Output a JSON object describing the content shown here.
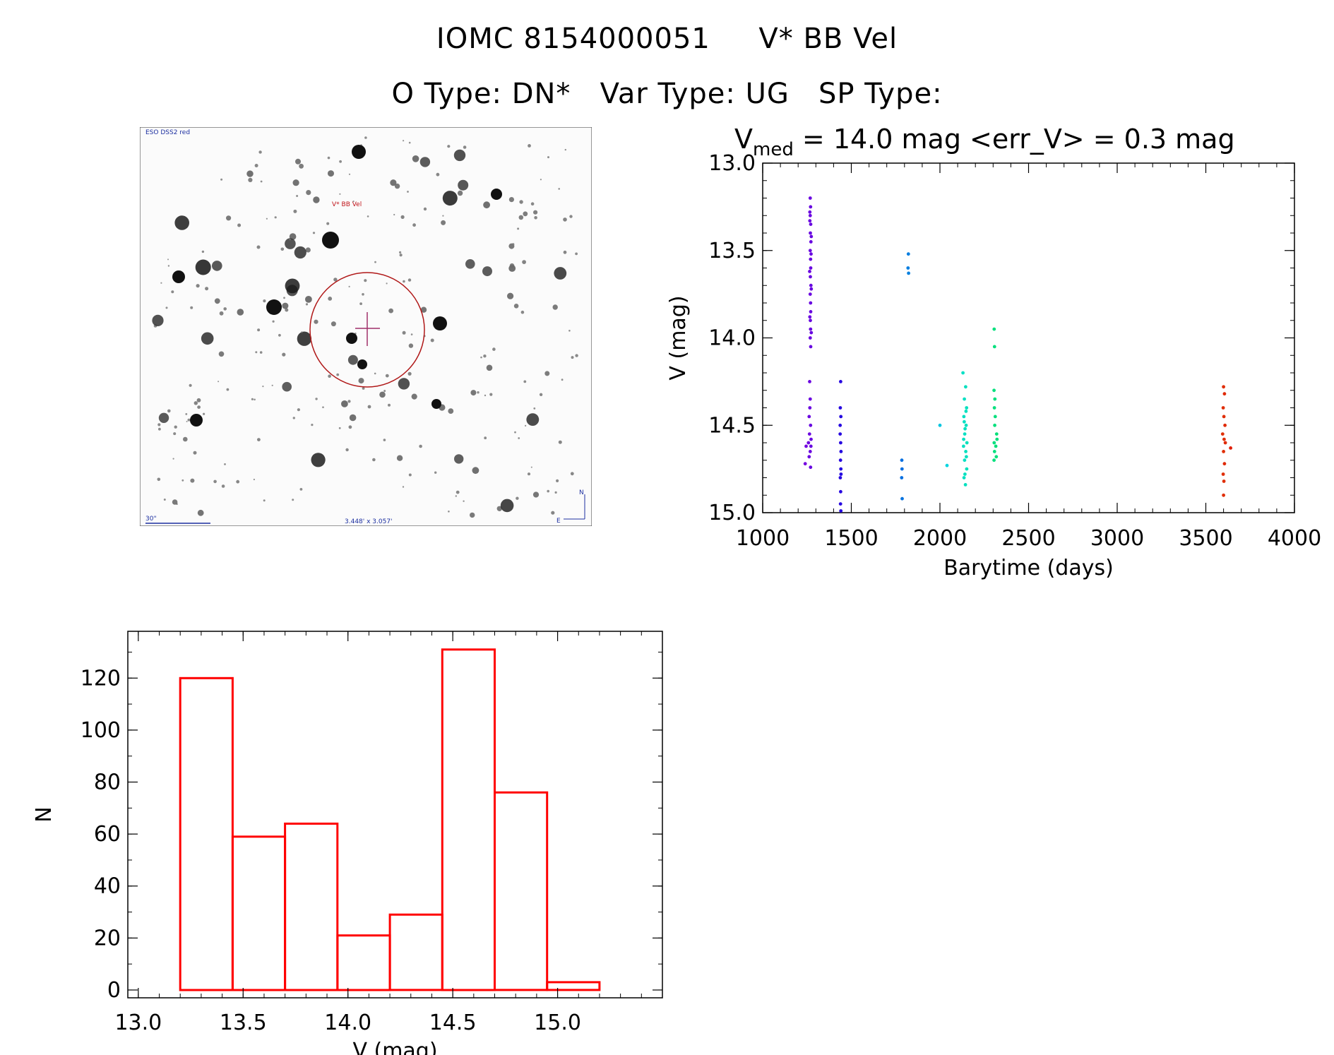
{
  "title": {
    "line1": "IOMC 8154000051     V* BB Vel",
    "line2": "O Type: DN*   Var Type: UG   SP Type:"
  },
  "finder": {
    "survey_label": "ESO DSS2 red",
    "target_label": "V* BB Vel",
    "scale_label": "30\"",
    "fov_label": "3.448' x 3.057'",
    "compass_n": "N",
    "compass_e": "E"
  },
  "chart_data": [
    {
      "type": "scatter",
      "title_prefix": "V",
      "title_sub": "med",
      "title_rest": " = 14.0 mag <err_V> = 0.3 mag",
      "xlabel": "Barytime (days)",
      "ylabel": "V (mag)",
      "xlim": [
        1000,
        4000
      ],
      "ylim": [
        15.0,
        13.0
      ],
      "x_ticks": [
        1000,
        1500,
        2000,
        2500,
        3000,
        3500,
        4000
      ],
      "y_ticks": [
        "13.0",
        "13.5",
        "14.0",
        "14.5",
        "15.0"
      ],
      "color_scale": "rainbow by time",
      "points": [
        [
          1268,
          13.2
        ],
        [
          1270,
          13.25
        ],
        [
          1268,
          13.3
        ],
        [
          1271,
          13.35
        ],
        [
          1269,
          13.4
        ],
        [
          1272,
          13.45
        ],
        [
          1268,
          13.5
        ],
        [
          1270,
          13.55
        ],
        [
          1271,
          13.6
        ],
        [
          1269,
          13.65
        ],
        [
          1272,
          13.7
        ],
        [
          1268,
          13.75
        ],
        [
          1270,
          13.8
        ],
        [
          1271,
          13.85
        ],
        [
          1269,
          13.9
        ],
        [
          1270,
          13.95
        ],
        [
          1268,
          14.0
        ],
        [
          1271,
          14.05
        ],
        [
          1266,
          13.28
        ],
        [
          1274,
          13.42
        ],
        [
          1265,
          13.62
        ],
        [
          1274,
          13.72
        ],
        [
          1266,
          13.88
        ],
        [
          1273,
          13.52
        ],
        [
          1266,
          13.33
        ],
        [
          1274,
          13.97
        ],
        [
          1265,
          14.25
        ],
        [
          1268,
          14.35
        ],
        [
          1262,
          14.45
        ],
        [
          1270,
          14.5
        ],
        [
          1264,
          14.55
        ],
        [
          1258,
          14.6
        ],
        [
          1272,
          14.62
        ],
        [
          1245,
          14.62
        ],
        [
          1268,
          14.65
        ],
        [
          1262,
          14.68
        ],
        [
          1240,
          14.72
        ],
        [
          1270,
          14.74
        ],
        [
          1266,
          14.4
        ],
        [
          1273,
          14.58
        ],
        [
          1440,
          14.25
        ],
        [
          1438,
          14.4
        ],
        [
          1441,
          14.45
        ],
        [
          1437,
          14.5
        ],
        [
          1440,
          14.6
        ],
        [
          1442,
          14.65
        ],
        [
          1439,
          14.7
        ],
        [
          1441,
          14.75
        ],
        [
          1438,
          14.8
        ],
        [
          1440,
          14.88
        ],
        [
          1439,
          14.95
        ],
        [
          1441,
          14.99
        ],
        [
          1437,
          14.55
        ],
        [
          1442,
          14.78
        ],
        [
          1785,
          14.7
        ],
        [
          1786,
          14.75
        ],
        [
          1784,
          14.8
        ],
        [
          1787,
          14.92
        ],
        [
          1822,
          13.52
        ],
        [
          1820,
          13.6
        ],
        [
          1823,
          13.63
        ],
        [
          2000,
          14.5
        ],
        [
          2040,
          14.73
        ],
        [
          2130,
          14.2
        ],
        [
          2145,
          14.28
        ],
        [
          2138,
          14.35
        ],
        [
          2150,
          14.4
        ],
        [
          2135,
          14.45
        ],
        [
          2148,
          14.5
        ],
        [
          2140,
          14.55
        ],
        [
          2152,
          14.6
        ],
        [
          2133,
          14.62
        ],
        [
          2146,
          14.65
        ],
        [
          2139,
          14.7
        ],
        [
          2151,
          14.75
        ],
        [
          2136,
          14.8
        ],
        [
          2144,
          14.84
        ],
        [
          2142,
          14.52
        ],
        [
          2134,
          14.58
        ],
        [
          2149,
          14.68
        ],
        [
          2141,
          14.78
        ],
        [
          2137,
          14.48
        ],
        [
          2147,
          14.42
        ],
        [
          2306,
          13.95
        ],
        [
          2308,
          14.05
        ],
        [
          2305,
          14.3
        ],
        [
          2310,
          14.35
        ],
        [
          2307,
          14.4
        ],
        [
          2312,
          14.45
        ],
        [
          2309,
          14.5
        ],
        [
          2320,
          14.55
        ],
        [
          2306,
          14.6
        ],
        [
          2315,
          14.62
        ],
        [
          2308,
          14.65
        ],
        [
          2318,
          14.68
        ],
        [
          2305,
          14.7
        ],
        [
          2322,
          14.58
        ],
        [
          3600,
          14.28
        ],
        [
          3605,
          14.32
        ],
        [
          3598,
          14.4
        ],
        [
          3602,
          14.45
        ],
        [
          3608,
          14.5
        ],
        [
          3595,
          14.55
        ],
        [
          3603,
          14.58
        ],
        [
          3610,
          14.6
        ],
        [
          3600,
          14.65
        ],
        [
          3640,
          14.63
        ],
        [
          3605,
          14.72
        ],
        [
          3598,
          14.78
        ],
        [
          3602,
          14.82
        ],
        [
          3600,
          14.9
        ]
      ]
    },
    {
      "type": "bar",
      "subtype": "histogram",
      "title": "",
      "xlabel": "V (mag)",
      "ylabel": "N",
      "xlim": [
        12.95,
        15.5
      ],
      "ylim": [
        -3,
        138
      ],
      "x_ticks": [
        "13.0",
        "13.5",
        "14.0",
        "14.5",
        "15.0"
      ],
      "y_ticks": [
        "0",
        "20",
        "40",
        "60",
        "80",
        "100",
        "120"
      ],
      "bin_edges": [
        13.2,
        13.45,
        13.7,
        13.95,
        14.2,
        14.45,
        14.7,
        14.95,
        15.2
      ],
      "values": [
        120,
        59,
        64,
        21,
        29,
        131,
        76,
        3
      ],
      "color": "#ff0000"
    }
  ]
}
